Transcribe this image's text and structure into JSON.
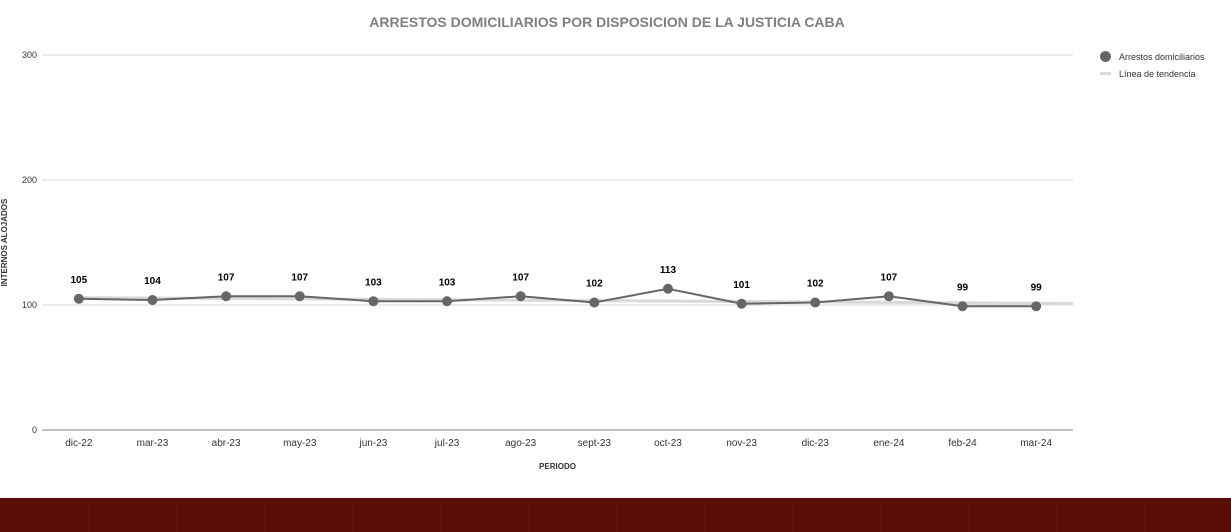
{
  "chart_data": {
    "type": "line",
    "title": "ARRESTOS DOMICILIARIOS POR DISPOSICION DE LA JUSTICIA CABA",
    "xlabel": "PERIODO",
    "ylabel": "INTERNOS ALOJADOS",
    "categories": [
      "dic-22",
      "mar-23",
      "abr-23",
      "may-23",
      "jun-23",
      "jul-23",
      "ago-23",
      "sept-23",
      "oct-23",
      "nov-23",
      "dic-23",
      "ene-24",
      "feb-24",
      "mar-24"
    ],
    "series": [
      {
        "name": "Arrestos domiciliarios",
        "values": [
          105,
          104,
          107,
          107,
          103,
          103,
          107,
          102,
          113,
          101,
          102,
          107,
          99,
          99
        ],
        "color": "#666666"
      },
      {
        "name": "Línea de tendencia",
        "trend": [
          105.9,
          101.2
        ],
        "color": "#d9d9d9"
      }
    ],
    "yticks": [
      0,
      100,
      200,
      300
    ],
    "ylim": [
      0,
      300
    ],
    "grid": true,
    "legend_position": "top-right",
    "data_labels": true
  }
}
